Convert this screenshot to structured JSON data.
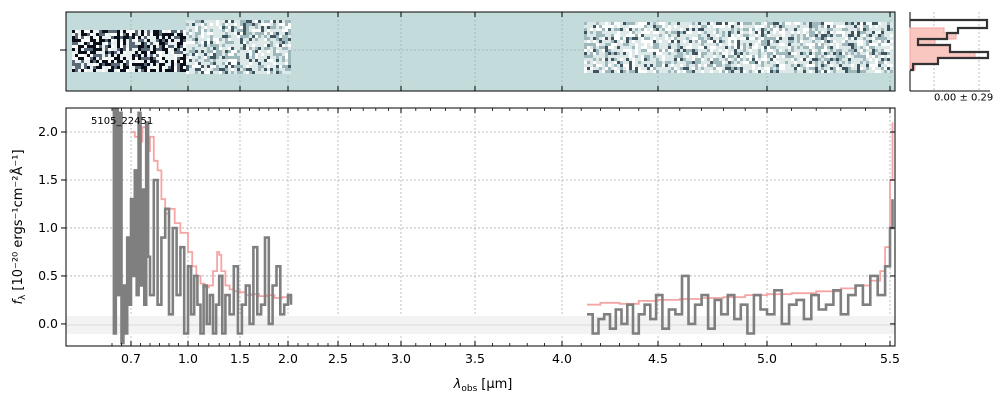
{
  "chart_data": {
    "type": "line",
    "object_label": "5105_22451",
    "xlabel": "λ",
    "xlabel_sub": "obs",
    "xlabel_unit": "[μm]",
    "ylabel": "f",
    "ylabel_sub": "λ",
    "ylabel_unit": "[10⁻²⁰ ergs⁻¹cm⁻²Å⁻¹]",
    "ylim": [
      -0.23,
      2.25
    ],
    "yticks": [
      0.0,
      0.5,
      1.0,
      1.5,
      2.0
    ],
    "ytick_labels": [
      "0.0",
      "0.5",
      "1.0",
      "1.5",
      "2.0"
    ],
    "xticks": [
      0.7,
      1.0,
      1.5,
      2.0,
      2.5,
      3.0,
      3.5,
      4.0,
      4.5,
      5.0,
      5.5
    ],
    "xtick_labels": [
      "0.7",
      "1.0",
      "1.5",
      "2.0",
      "2.5",
      "3.0",
      "3.5",
      "4.0",
      "4.5",
      "5.0",
      "5.5"
    ],
    "grid": true,
    "profile_annotation": "0.00 ± 0.29",
    "colors": {
      "data": "#7f7f7f",
      "model": "#f4a6a6",
      "profile_line": "#333333",
      "profile_fill": "#f9c6c0",
      "spectrum2d_bg": "#c4dbdb",
      "grid": "#b0b0b0"
    },
    "series": [
      {
        "role": "data",
        "segments": [
          {
            "x": [
              0.6,
              0.61,
              0.62,
              0.63,
              0.64,
              0.65,
              0.66,
              0.67,
              0.68,
              0.69,
              0.7,
              0.71,
              0.72,
              0.73,
              0.74,
              0.75,
              0.76,
              0.77,
              0.78,
              0.79,
              0.8,
              0.82,
              0.84,
              0.86,
              0.88,
              0.9,
              0.92,
              0.94,
              0.96,
              0.98,
              1.0,
              1.03,
              1.06,
              1.09,
              1.12,
              1.15,
              1.18,
              1.21,
              1.24,
              1.27,
              1.3,
              1.33,
              1.36,
              1.4,
              1.44,
              1.48,
              1.52,
              1.56,
              1.6,
              1.64,
              1.68,
              1.72,
              1.76,
              1.8,
              1.84,
              1.88,
              1.92,
              1.96,
              2.0,
              2.03
            ],
            "y": [
              2.4,
              -0.1,
              2.3,
              0.3,
              2.2,
              -0.2,
              0.4,
              -0.1,
              0.9,
              0.2,
              1.3,
              0.5,
              1.6,
              0.3,
              2.2,
              0.4,
              1.4,
              0.2,
              2.1,
              0.7,
              0.3,
              1.5,
              0.2,
              0.9,
              1.2,
              0.1,
              1.0,
              0.3,
              0.8,
              -0.1,
              0.6,
              0.1,
              0.5,
              0.2,
              -0.1,
              0.4,
              0.0,
              0.3,
              -0.1,
              0.2,
              0.5,
              -0.1,
              0.3,
              0.1,
              0.6,
              -0.1,
              0.2,
              0.4,
              0.0,
              0.8,
              0.1,
              0.2,
              0.9,
              0.0,
              0.4,
              0.6,
              0.1,
              0.2,
              0.3,
              0.2
            ]
          },
          {
            "x": [
              4.13,
              4.16,
              4.19,
              4.22,
              4.25,
              4.28,
              4.31,
              4.34,
              4.37,
              4.4,
              4.43,
              4.46,
              4.49,
              4.52,
              4.55,
              4.58,
              4.61,
              4.64,
              4.67,
              4.7,
              4.73,
              4.76,
              4.79,
              4.82,
              4.85,
              4.88,
              4.91,
              4.94,
              4.97,
              5.0,
              5.03,
              5.06,
              5.09,
              5.12,
              5.15,
              5.18,
              5.21,
              5.24,
              5.27,
              5.3,
              5.33,
              5.36,
              5.39,
              5.42,
              5.45,
              5.48,
              5.5,
              5.51
            ],
            "y": [
              0.1,
              -0.1,
              0.05,
              0.1,
              -0.05,
              0.15,
              0.0,
              0.2,
              -0.1,
              0.1,
              0.2,
              0.05,
              0.3,
              -0.05,
              0.15,
              0.1,
              0.5,
              0.0,
              0.2,
              0.3,
              -0.05,
              0.25,
              0.1,
              0.3,
              0.05,
              0.2,
              -0.1,
              0.3,
              0.15,
              0.1,
              0.35,
              0.0,
              0.2,
              0.25,
              0.05,
              0.3,
              0.15,
              0.2,
              0.35,
              0.1,
              0.3,
              0.4,
              0.2,
              0.5,
              0.3,
              0.6,
              1.0,
              1.3
            ]
          }
        ]
      },
      {
        "role": "model",
        "segments": [
          {
            "x": [
              0.7,
              0.72,
              0.74,
              0.76,
              0.78,
              0.8,
              0.82,
              0.84,
              0.86,
              0.88,
              0.9,
              0.93,
              0.96,
              1.0,
              1.04,
              1.08,
              1.12,
              1.16,
              1.2,
              1.24,
              1.28,
              1.3,
              1.32,
              1.36,
              1.4,
              1.44,
              1.5,
              1.56,
              1.62,
              1.7,
              1.78,
              1.86,
              1.94,
              2.02
            ],
            "y": [
              2.0,
              1.95,
              1.9,
              2.05,
              1.8,
              1.95,
              1.7,
              1.6,
              1.3,
              1.15,
              1.2,
              1.05,
              0.95,
              0.75,
              0.6,
              0.5,
              0.42,
              0.38,
              0.4,
              0.55,
              0.75,
              0.72,
              0.55,
              0.4,
              0.36,
              0.34,
              0.33,
              0.3,
              0.31,
              0.29,
              0.3,
              0.27,
              0.28,
              0.25
            ]
          },
          {
            "x": [
              4.13,
              4.2,
              4.3,
              4.4,
              4.5,
              4.6,
              4.7,
              4.8,
              4.9,
              5.0,
              5.1,
              5.2,
              5.3,
              5.36,
              5.42,
              5.46,
              5.48,
              5.5,
              5.51
            ],
            "y": [
              0.2,
              0.22,
              0.21,
              0.24,
              0.25,
              0.26,
              0.27,
              0.28,
              0.3,
              0.31,
              0.32,
              0.34,
              0.37,
              0.4,
              0.45,
              0.55,
              0.8,
              1.5,
              2.1
            ]
          }
        ]
      }
    ]
  }
}
